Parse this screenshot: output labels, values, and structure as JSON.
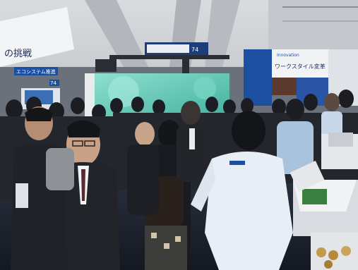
{
  "signs": {
    "left_banner": "の挑戦",
    "top_left_panel": "エコシステム推進",
    "top_left_number": "74",
    "hanging_sign": "74",
    "right_booth_header": "Innovation",
    "right_booth_title": "ワークスタイル変革"
  },
  "colors": {
    "ceiling": "#c9ccd1",
    "crowd_dark": "#1f2229",
    "booth_teal": "#5fc4b4",
    "booth_blue": "#1d4fa0",
    "shirt_light": "#e8eef6"
  }
}
